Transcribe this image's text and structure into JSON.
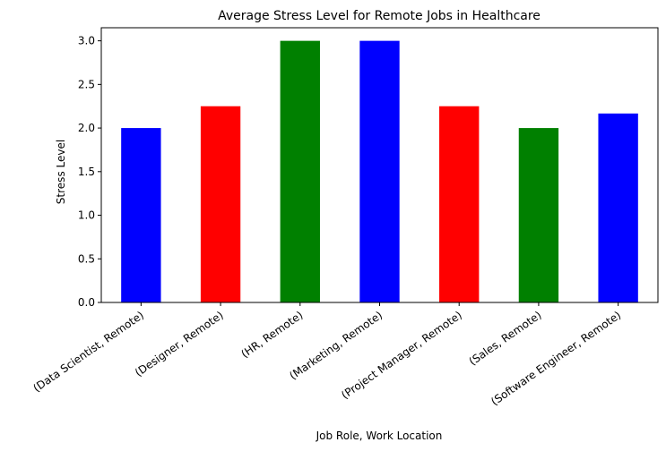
{
  "chart_data": {
    "type": "bar",
    "title": "Average Stress Level for Remote Jobs in Healthcare",
    "xlabel": "Job Role, Work Location",
    "ylabel": "Stress Level",
    "categories": [
      "(Data Scientist, Remote)",
      "(Designer, Remote)",
      "(HR, Remote)",
      "(Marketing, Remote)",
      "(Project Manager, Remote)",
      "(Sales, Remote)",
      "(Software Engineer, Remote)"
    ],
    "values": [
      2.0,
      2.25,
      3.0,
      3.0,
      2.25,
      2.0,
      2.1667
    ],
    "colors": [
      "#0000ff",
      "#ff0000",
      "#008000",
      "#0000ff",
      "#ff0000",
      "#008000",
      "#0000ff"
    ],
    "ylim": [
      0,
      3.15
    ],
    "yticks": [
      "0.0",
      "0.5",
      "1.0",
      "1.5",
      "2.0",
      "2.5",
      "3.0"
    ],
    "grid": false,
    "legend": "none"
  }
}
